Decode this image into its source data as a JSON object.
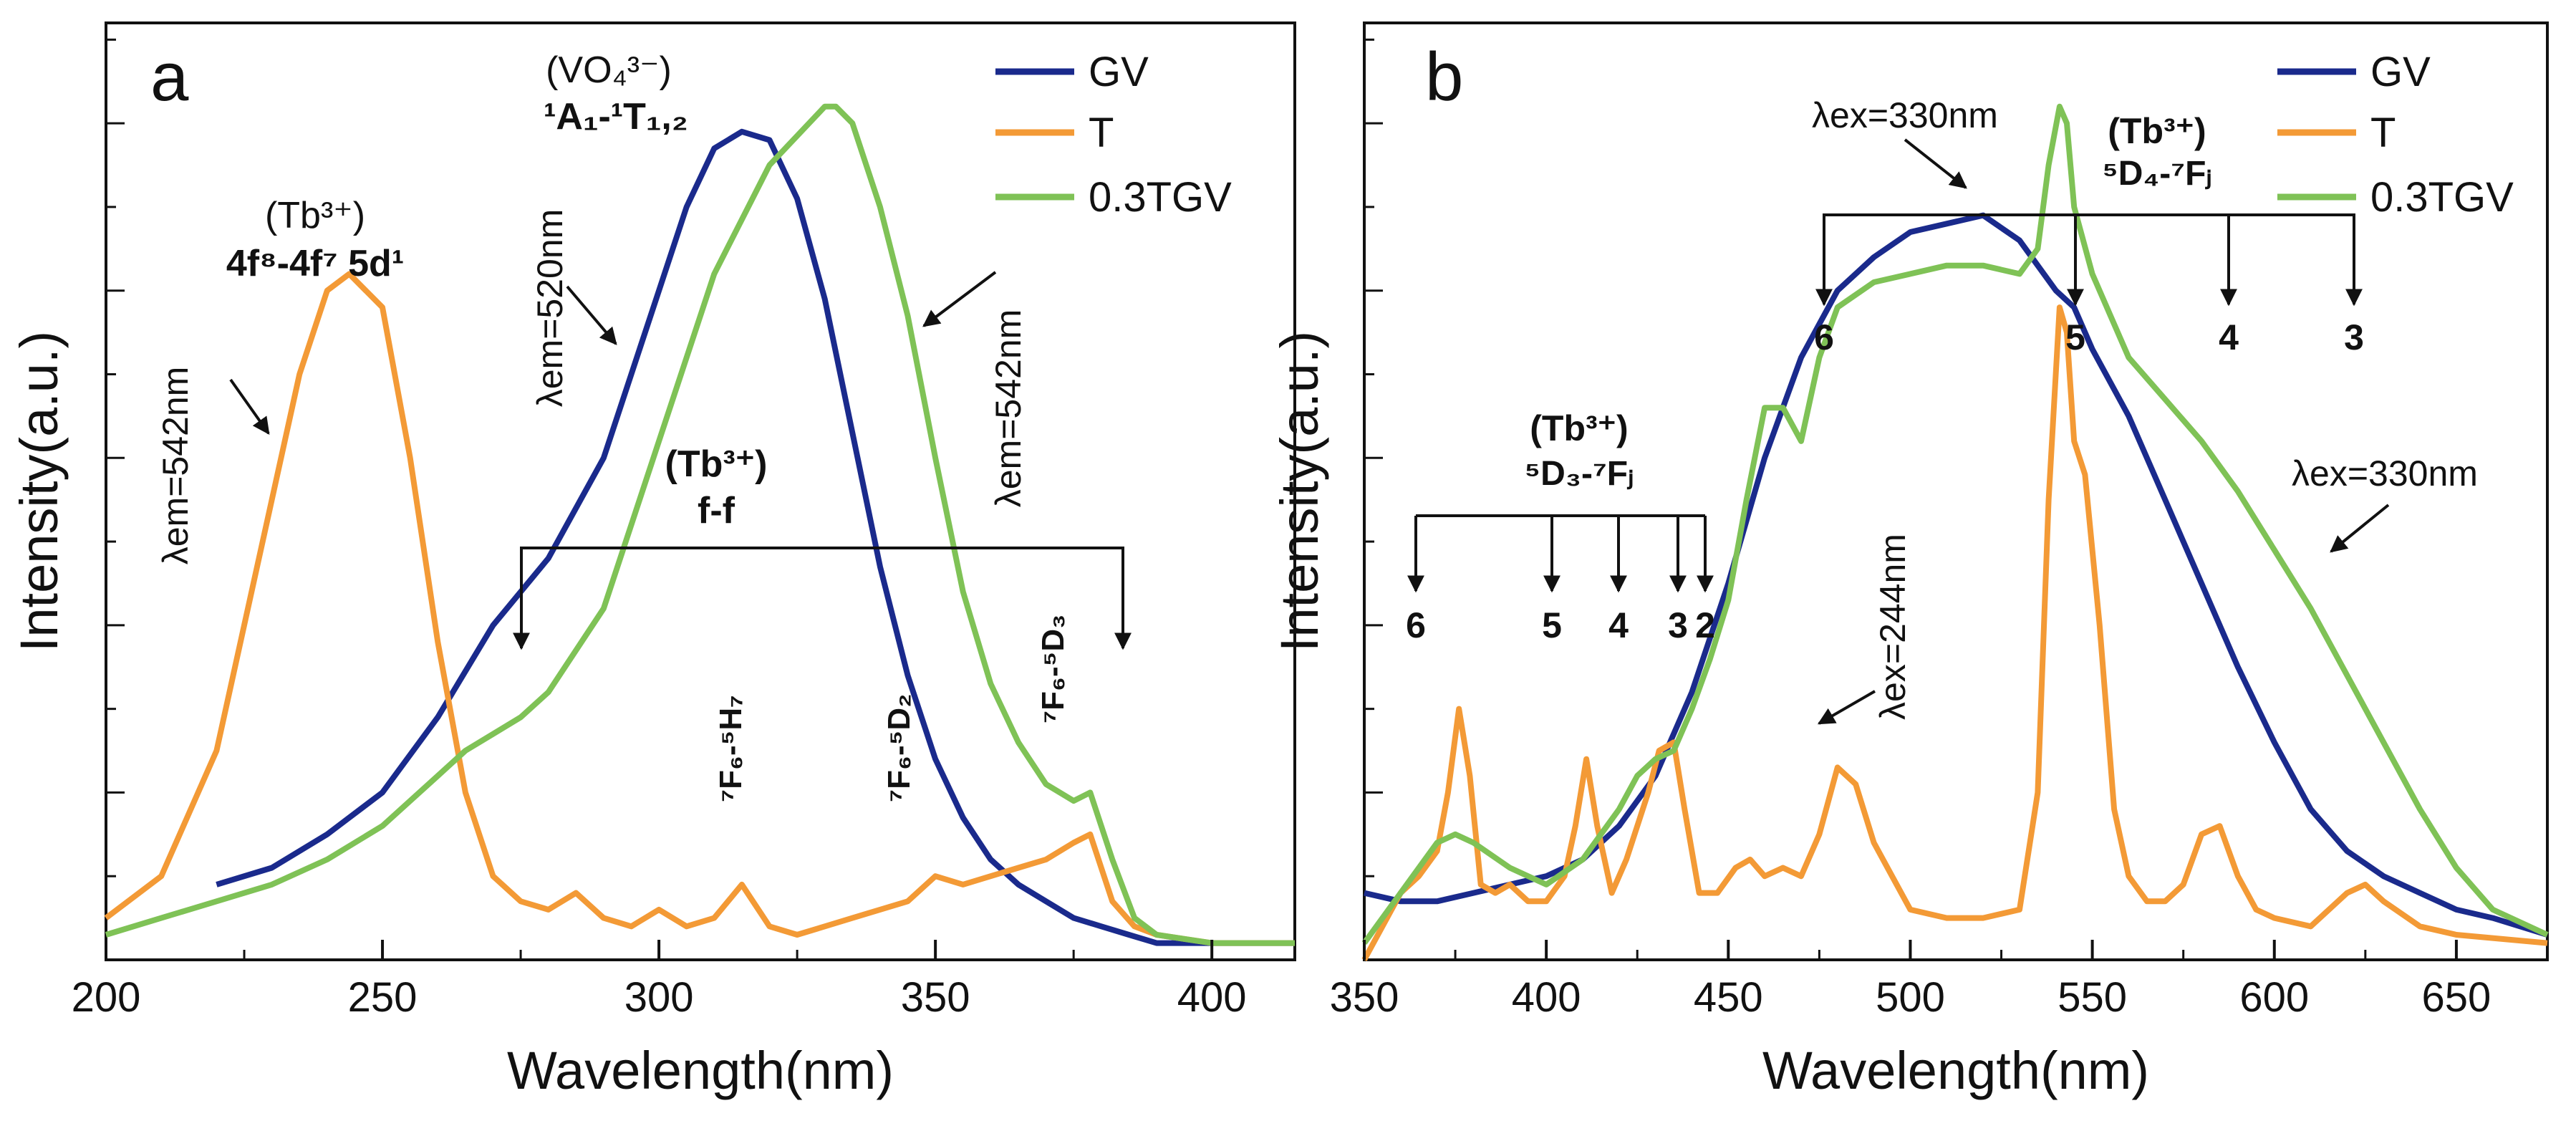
{
  "chart_data": [
    {
      "type": "line",
      "panel_label": "a",
      "xlabel": "Wavelength(nm)",
      "ylabel": "Intensity(a.u.)",
      "xlim": [
        200,
        415
      ],
      "ylim": [
        0,
        1.12
      ],
      "xticks": [
        200,
        250,
        300,
        350,
        400
      ],
      "xtick_labels": [
        "200",
        "250",
        "300",
        "350",
        "400"
      ],
      "legend": [
        "GV",
        "T",
        "0.3TGV"
      ],
      "legend_position": "top-right",
      "colors": {
        "GV": "#1a2a8c",
        "T": "#f39a36",
        "0.3TGV": "#7fc256"
      },
      "series": [
        {
          "name": "GV",
          "x": [
            220,
            230,
            240,
            250,
            260,
            270,
            280,
            290,
            295,
            300,
            305,
            310,
            315,
            320,
            325,
            330,
            335,
            340,
            345,
            350,
            355,
            360,
            365,
            370,
            375,
            380,
            385,
            390,
            400,
            415
          ],
          "y": [
            0.09,
            0.11,
            0.15,
            0.2,
            0.29,
            0.4,
            0.48,
            0.6,
            0.7,
            0.8,
            0.9,
            0.97,
            0.99,
            0.98,
            0.91,
            0.79,
            0.63,
            0.47,
            0.34,
            0.24,
            0.17,
            0.12,
            0.09,
            0.07,
            0.05,
            0.04,
            0.03,
            0.02,
            0.02,
            0.02
          ]
        },
        {
          "name": "T",
          "x": [
            200,
            210,
            220,
            230,
            235,
            240,
            244,
            250,
            255,
            260,
            265,
            270,
            275,
            280,
            285,
            290,
            295,
            300,
            305,
            310,
            315,
            320,
            325,
            330,
            335,
            340,
            345,
            350,
            355,
            360,
            365,
            370,
            375,
            378,
            382,
            386,
            390,
            400,
            415
          ],
          "y": [
            0.05,
            0.1,
            0.25,
            0.55,
            0.7,
            0.8,
            0.82,
            0.78,
            0.6,
            0.38,
            0.2,
            0.1,
            0.07,
            0.06,
            0.08,
            0.05,
            0.04,
            0.06,
            0.04,
            0.05,
            0.09,
            0.04,
            0.03,
            0.04,
            0.05,
            0.06,
            0.07,
            0.1,
            0.09,
            0.1,
            0.11,
            0.12,
            0.14,
            0.15,
            0.07,
            0.04,
            0.03,
            0.02,
            0.02
          ]
        },
        {
          "name": "0.3TGV",
          "x": [
            200,
            210,
            220,
            230,
            240,
            250,
            260,
            265,
            270,
            275,
            280,
            290,
            300,
            310,
            320,
            330,
            332,
            335,
            340,
            345,
            350,
            355,
            360,
            365,
            370,
            375,
            378,
            382,
            386,
            390,
            400,
            415
          ],
          "y": [
            0.03,
            0.05,
            0.07,
            0.09,
            0.12,
            0.16,
            0.22,
            0.25,
            0.27,
            0.29,
            0.32,
            0.42,
            0.62,
            0.82,
            0.95,
            1.02,
            1.02,
            1.0,
            0.9,
            0.77,
            0.6,
            0.44,
            0.33,
            0.26,
            0.21,
            0.19,
            0.2,
            0.12,
            0.05,
            0.03,
            0.02,
            0.02
          ]
        }
      ],
      "annotations": {
        "vo4_title": "(VO₄³⁻)",
        "vo4_transition": "¹A₁-¹T₁,₂",
        "lem520": "λem=520nm",
        "lem542_right": "λem=542nm",
        "lem542_left": "λem=542nm",
        "tb_title_left": "(Tb³⁺)",
        "tb_transition_left": "4f⁸-4f⁷ 5d¹",
        "tb_ff_title": "(Tb³⁺)",
        "tb_ff": "f-f",
        "tr1": "⁷F₆-⁵H₇",
        "tr2": "⁷F₆-⁵D₂",
        "tr3": "⁷F₆-⁵D₃"
      }
    },
    {
      "type": "line",
      "panel_label": "b",
      "xlabel": "Wavelength(nm)",
      "ylabel": "Intensity(a.u.)",
      "xlim": [
        350,
        675
      ],
      "ylim": [
        0,
        1.12
      ],
      "xticks": [
        350,
        400,
        450,
        500,
        550,
        600,
        650
      ],
      "xtick_labels": [
        "350",
        "400",
        "450",
        "500",
        "550",
        "600",
        "650"
      ],
      "legend": [
        "GV",
        "T",
        "0.3TGV"
      ],
      "legend_position": "top-right",
      "colors": {
        "GV": "#1a2a8c",
        "T": "#f39a36",
        "0.3TGV": "#7fc256"
      },
      "series": [
        {
          "name": "GV",
          "x": [
            350,
            360,
            370,
            380,
            390,
            400,
            410,
            420,
            430,
            440,
            450,
            460,
            470,
            480,
            490,
            500,
            510,
            520,
            530,
            540,
            545,
            550,
            560,
            570,
            580,
            590,
            600,
            610,
            620,
            630,
            640,
            650,
            660,
            675
          ],
          "y": [
            0.08,
            0.07,
            0.07,
            0.08,
            0.09,
            0.1,
            0.12,
            0.16,
            0.22,
            0.32,
            0.45,
            0.6,
            0.72,
            0.8,
            0.84,
            0.87,
            0.88,
            0.89,
            0.86,
            0.8,
            0.78,
            0.73,
            0.65,
            0.55,
            0.45,
            0.35,
            0.26,
            0.18,
            0.13,
            0.1,
            0.08,
            0.06,
            0.05,
            0.03
          ]
        },
        {
          "name": "T",
          "x": [
            350,
            360,
            365,
            370,
            373,
            376,
            379,
            382,
            386,
            390,
            395,
            400,
            405,
            408,
            411,
            414,
            418,
            422,
            428,
            431,
            435,
            438,
            442,
            447,
            452,
            456,
            460,
            465,
            470,
            475,
            480,
            485,
            490,
            495,
            500,
            510,
            520,
            530,
            535,
            538,
            541,
            543,
            545,
            548,
            552,
            556,
            560,
            565,
            570,
            575,
            580,
            585,
            590,
            595,
            600,
            610,
            615,
            620,
            625,
            630,
            640,
            650,
            675
          ],
          "y": [
            0.0,
            0.08,
            0.1,
            0.13,
            0.2,
            0.3,
            0.22,
            0.09,
            0.08,
            0.09,
            0.07,
            0.07,
            0.1,
            0.16,
            0.24,
            0.16,
            0.08,
            0.12,
            0.2,
            0.25,
            0.26,
            0.18,
            0.08,
            0.08,
            0.11,
            0.12,
            0.1,
            0.11,
            0.1,
            0.15,
            0.23,
            0.21,
            0.14,
            0.1,
            0.06,
            0.05,
            0.05,
            0.06,
            0.2,
            0.55,
            0.78,
            0.75,
            0.62,
            0.58,
            0.4,
            0.18,
            0.1,
            0.07,
            0.07,
            0.09,
            0.15,
            0.16,
            0.1,
            0.06,
            0.05,
            0.04,
            0.06,
            0.08,
            0.09,
            0.07,
            0.04,
            0.03,
            0.02
          ]
        },
        {
          "name": "0.3TGV",
          "x": [
            350,
            360,
            370,
            375,
            380,
            390,
            400,
            410,
            420,
            425,
            430,
            435,
            440,
            445,
            450,
            455,
            460,
            465,
            470,
            475,
            480,
            490,
            500,
            510,
            520,
            530,
            535,
            538,
            541,
            543,
            545,
            550,
            555,
            560,
            570,
            580,
            590,
            600,
            610,
            620,
            630,
            640,
            650,
            660,
            675
          ],
          "y": [
            0.02,
            0.08,
            0.14,
            0.15,
            0.14,
            0.11,
            0.09,
            0.12,
            0.18,
            0.22,
            0.24,
            0.25,
            0.3,
            0.36,
            0.43,
            0.55,
            0.66,
            0.66,
            0.62,
            0.72,
            0.78,
            0.81,
            0.82,
            0.83,
            0.83,
            0.82,
            0.85,
            0.95,
            1.02,
            1.0,
            0.9,
            0.82,
            0.77,
            0.72,
            0.67,
            0.62,
            0.56,
            0.49,
            0.42,
            0.34,
            0.26,
            0.18,
            0.11,
            0.06,
            0.03
          ]
        }
      ],
      "annotations": {
        "lex330_top": "λex=330nm",
        "tb_title_top": "(Tb³⁺)",
        "tb_transition_top": "⁵D₄-⁷Fⱼ",
        "tb_title_mid": "(Tb³⁺)",
        "tb_transition_mid": "⁵D₃-⁷Fⱼ",
        "lex330_right": "λex=330nm",
        "lex244": "λex=244nm",
        "mid_arrows": [
          "6",
          "5",
          "4",
          "3",
          "2"
        ],
        "top_arrows": [
          "6",
          "5",
          "4",
          "3"
        ]
      }
    }
  ]
}
